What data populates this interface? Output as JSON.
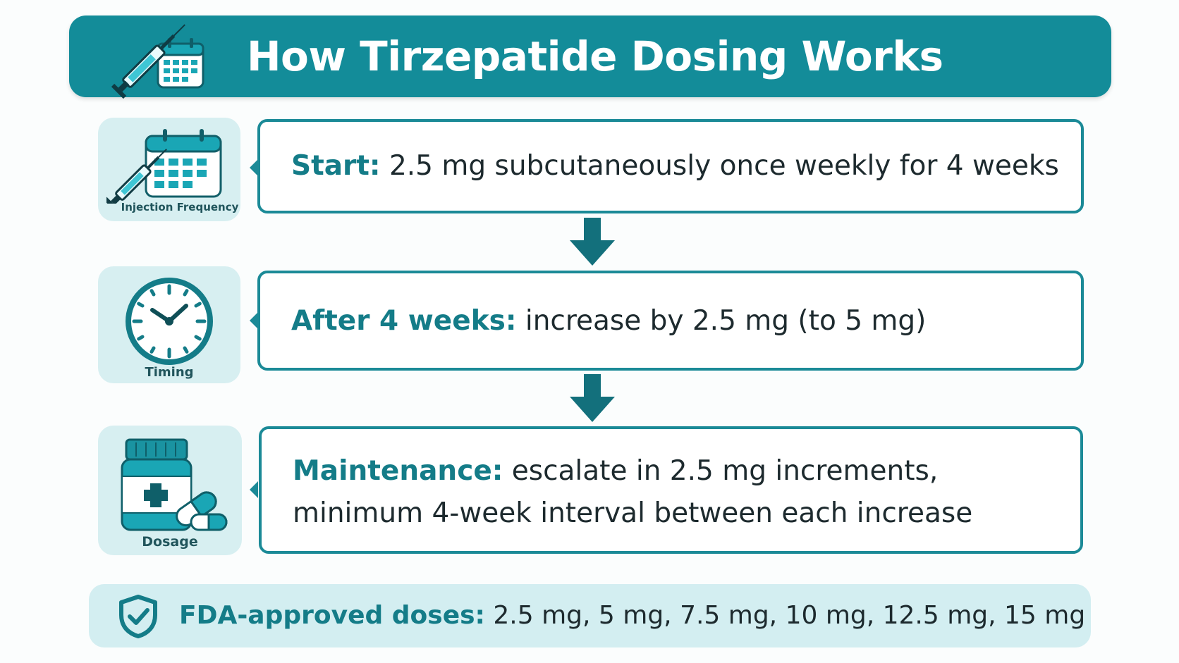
{
  "header": {
    "title": "How Tirzepatide Dosing Works"
  },
  "icons": {
    "header_icon": "syringe-calendar-icon",
    "frequency": {
      "icon": "syringe-calendar-icon",
      "label": "Injection Frequency"
    },
    "timing": {
      "icon": "clock-icon",
      "label": "Timing"
    },
    "dosage": {
      "icon": "pill-bottle-icon",
      "label": "Dosage"
    }
  },
  "steps": [
    {
      "key": "Start:",
      "text": "2.5 mg subcutaneously once weekly for 4 weeks"
    },
    {
      "key": "After 4 weeks:",
      "text": "increase by 2.5 mg (to 5 mg)"
    },
    {
      "key": "Maintenance:",
      "text": "escalate in 2.5 mg increments,",
      "text2": "minimum 4-week interval between each increase"
    }
  ],
  "footer": {
    "icon": "shield-check-icon",
    "key": "FDA-approved doses:",
    "text": "2.5 mg, 5 mg, 7.5 mg, 10 mg, 12.5 mg, 15 mg"
  },
  "colors": {
    "primary": "#138c99",
    "accent_text": "#147c88",
    "card_bg": "#d7eff1"
  }
}
